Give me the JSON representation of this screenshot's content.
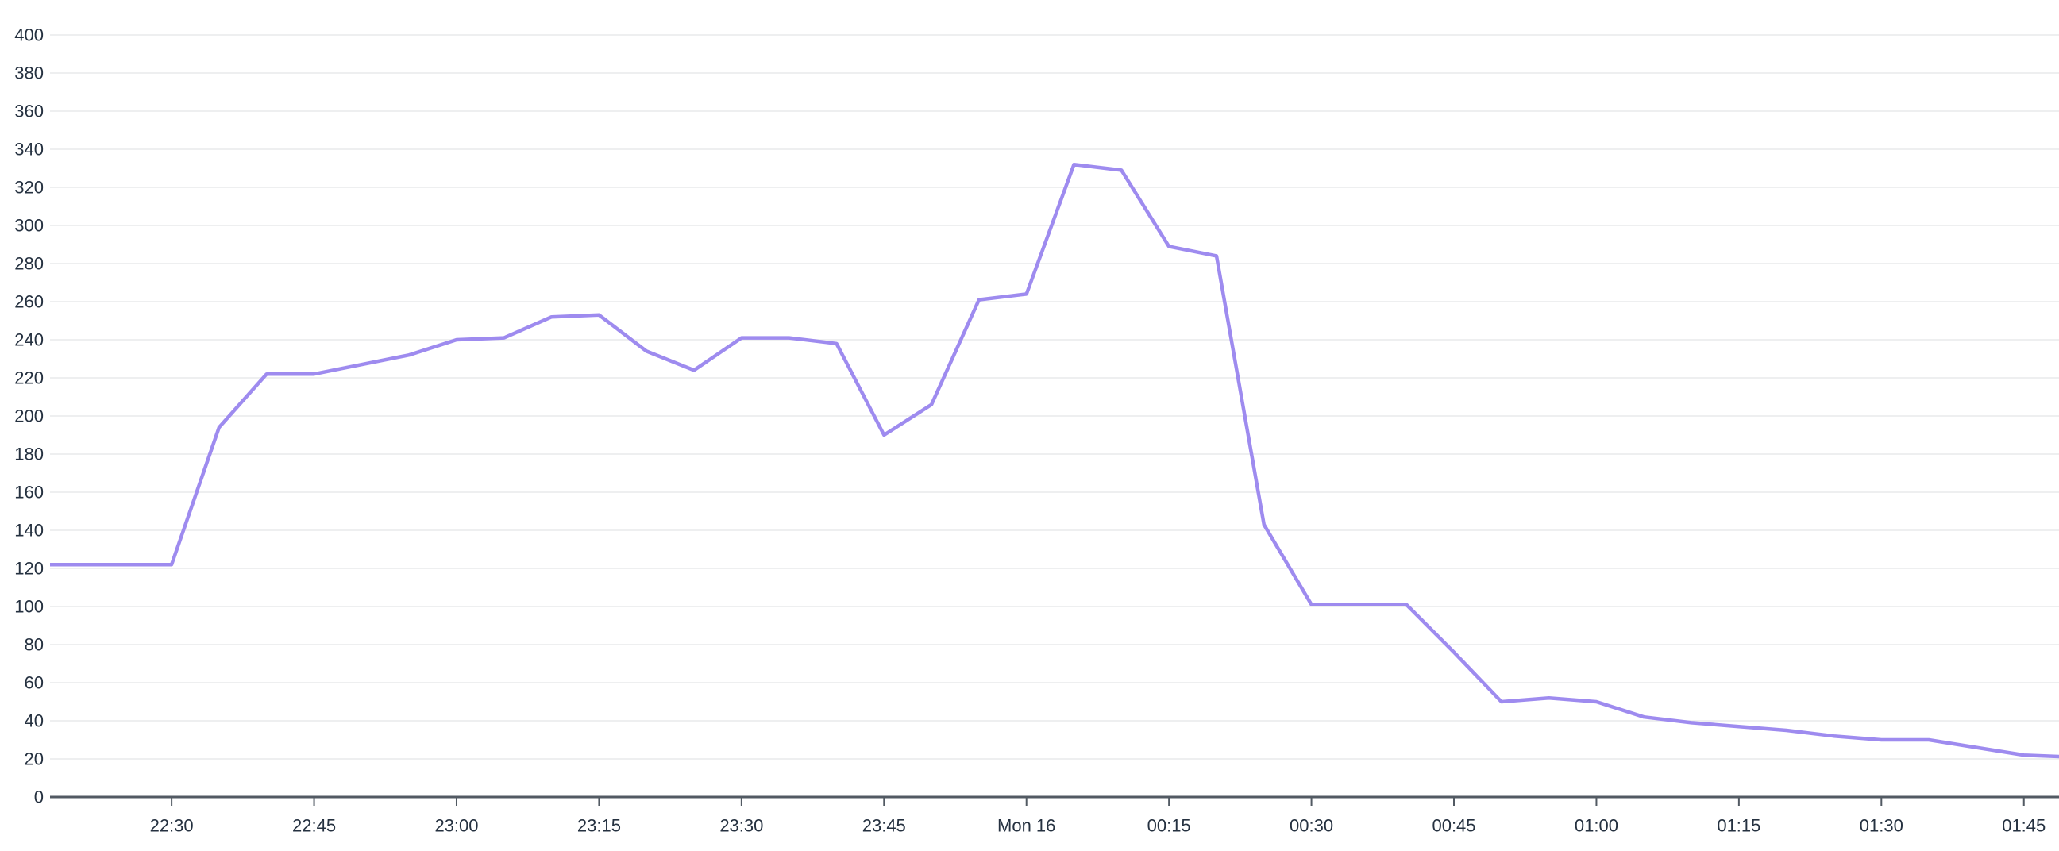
{
  "chart_data": {
    "type": "line",
    "title": "",
    "xlabel": "",
    "ylabel": "",
    "legend": "none",
    "grid": "horizontal",
    "colors": {
      "line": "#9e8bef",
      "grid": "#e9eaec",
      "axis": "#525a63",
      "text": "#253140",
      "background": "#ffffff"
    },
    "y_axis": {
      "min": 0,
      "max": 400,
      "step": 20,
      "tick_labels": [
        "0",
        "20",
        "40",
        "60",
        "80",
        "100",
        "120",
        "140",
        "160",
        "180",
        "200",
        "220",
        "240",
        "260",
        "280",
        "300",
        "320",
        "340",
        "360",
        "380",
        "400"
      ]
    },
    "x_axis": {
      "domain_min": -12.8,
      "domain_max": 198.7,
      "ticks": [
        {
          "label": "22:30",
          "m": 0
        },
        {
          "label": "22:45",
          "m": 15
        },
        {
          "label": "23:00",
          "m": 30
        },
        {
          "label": "23:15",
          "m": 45
        },
        {
          "label": "23:30",
          "m": 60
        },
        {
          "label": "23:45",
          "m": 75
        },
        {
          "label": "Mon 16",
          "m": 90
        },
        {
          "label": "00:15",
          "m": 105
        },
        {
          "label": "00:30",
          "m": 120
        },
        {
          "label": "00:45",
          "m": 135
        },
        {
          "label": "01:00",
          "m": 150
        },
        {
          "label": "01:15",
          "m": 165
        },
        {
          "label": "01:30",
          "m": 180
        },
        {
          "label": "01:45",
          "m": 195
        }
      ]
    },
    "series": [
      {
        "name": "value",
        "color": "#9e8bef",
        "points": [
          {
            "t": "22:15",
            "m": -15,
            "v": 122
          },
          {
            "t": "22:20",
            "m": -10,
            "v": 122
          },
          {
            "t": "22:25",
            "m": -5,
            "v": 122
          },
          {
            "t": "22:30",
            "m": 0,
            "v": 122
          },
          {
            "t": "22:35",
            "m": 5,
            "v": 194
          },
          {
            "t": "22:40",
            "m": 10,
            "v": 222
          },
          {
            "t": "22:45",
            "m": 15,
            "v": 222
          },
          {
            "t": "22:50",
            "m": 20,
            "v": 227
          },
          {
            "t": "22:55",
            "m": 25,
            "v": 232
          },
          {
            "t": "23:00",
            "m": 30,
            "v": 240
          },
          {
            "t": "23:05",
            "m": 35,
            "v": 241
          },
          {
            "t": "23:10",
            "m": 40,
            "v": 252
          },
          {
            "t": "23:15",
            "m": 45,
            "v": 253
          },
          {
            "t": "23:20",
            "m": 50,
            "v": 234
          },
          {
            "t": "23:25",
            "m": 55,
            "v": 224
          },
          {
            "t": "23:30",
            "m": 60,
            "v": 241
          },
          {
            "t": "23:35",
            "m": 65,
            "v": 241
          },
          {
            "t": "23:40",
            "m": 70,
            "v": 238
          },
          {
            "t": "23:45",
            "m": 75,
            "v": 190
          },
          {
            "t": "23:50",
            "m": 80,
            "v": 206
          },
          {
            "t": "23:55",
            "m": 85,
            "v": 261
          },
          {
            "t": "00:00",
            "m": 90,
            "v": 264
          },
          {
            "t": "00:05",
            "m": 95,
            "v": 332
          },
          {
            "t": "00:10",
            "m": 100,
            "v": 329
          },
          {
            "t": "00:15",
            "m": 105,
            "v": 289
          },
          {
            "t": "00:20",
            "m": 110,
            "v": 284
          },
          {
            "t": "00:25",
            "m": 115,
            "v": 143
          },
          {
            "t": "00:30",
            "m": 120,
            "v": 101
          },
          {
            "t": "00:35",
            "m": 125,
            "v": 101
          },
          {
            "t": "00:40",
            "m": 130,
            "v": 101
          },
          {
            "t": "00:45",
            "m": 135,
            "v": 76
          },
          {
            "t": "00:50",
            "m": 140,
            "v": 50
          },
          {
            "t": "00:55",
            "m": 145,
            "v": 52
          },
          {
            "t": "01:00",
            "m": 150,
            "v": 50
          },
          {
            "t": "01:05",
            "m": 155,
            "v": 42
          },
          {
            "t": "01:10",
            "m": 160,
            "v": 39
          },
          {
            "t": "01:15",
            "m": 165,
            "v": 37
          },
          {
            "t": "01:20",
            "m": 170,
            "v": 35
          },
          {
            "t": "01:25",
            "m": 175,
            "v": 32
          },
          {
            "t": "01:30",
            "m": 180,
            "v": 30
          },
          {
            "t": "01:35",
            "m": 185,
            "v": 30
          },
          {
            "t": "01:40",
            "m": 190,
            "v": 26
          },
          {
            "t": "01:45",
            "m": 195,
            "v": 22
          },
          {
            "t": "01:50",
            "m": 200,
            "v": 21
          }
        ]
      }
    ]
  }
}
